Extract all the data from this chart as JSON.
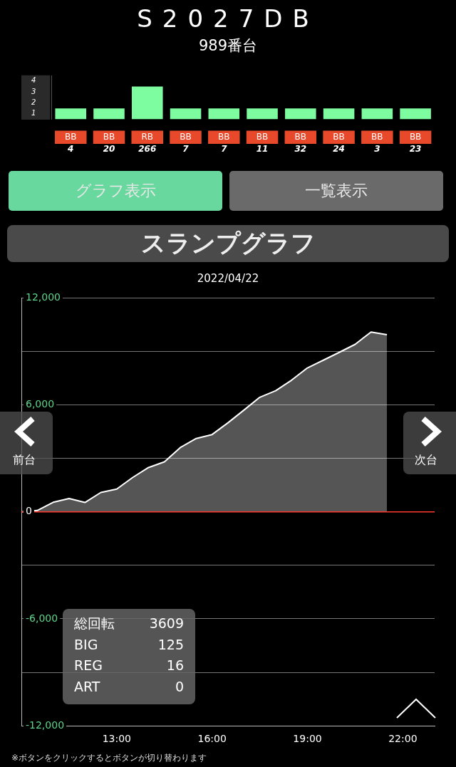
{
  "chart_data": [
    {
      "type": "bar",
      "title": "S2027DB",
      "subtitle": "989番台",
      "categories": [
        "BB",
        "BB",
        "RB",
        "BB",
        "BB",
        "BB",
        "BB",
        "BB",
        "BB",
        "BB"
      ],
      "values": [
        1,
        1,
        3,
        1,
        1,
        1,
        1,
        1,
        1,
        1
      ],
      "color": "#7dfca0",
      "ylim": [
        0,
        4
      ],
      "yticks": [
        {
          "value": 0.5,
          "label": "1"
        },
        {
          "value": 1.5,
          "label": "2"
        },
        {
          "value": 2.5,
          "label": "3"
        },
        {
          "value": 3.5,
          "label": "4"
        }
      ],
      "annotations": [
        "4",
        "20",
        "266",
        "7",
        "7",
        "11",
        "32",
        "24",
        "3",
        "23",
        "グラフ表示",
        "一覧表示"
      ]
    },
    {
      "type": "area",
      "title": "スランプグラフ",
      "subtitle": "2022/04/22",
      "x": [
        10,
        10.5,
        11,
        11.5,
        12,
        12.5,
        13,
        13.5,
        14,
        14.5,
        15,
        15.5,
        16,
        16.5,
        17,
        17.5,
        18,
        18.5,
        19,
        19.5,
        20,
        20.5,
        21,
        21.5
      ],
      "series": [
        {
          "color": "#ffffff",
          "values": [
            0,
            80,
            540,
            750,
            530,
            1090,
            1280,
            1930,
            2490,
            2810,
            3610,
            4120,
            4340,
            5000,
            5710,
            6430,
            6800,
            7390,
            8080,
            8510,
            8950,
            9400,
            10090,
            9940
          ]
        }
      ],
      "xlim": [
        10,
        23
      ],
      "ylim": [
        -12000,
        12000
      ],
      "xticks": [
        {
          "value": 13,
          "label": "13:00"
        },
        {
          "value": 16,
          "label": "16:00"
        },
        {
          "value": 19,
          "label": "19:00"
        },
        {
          "value": 22,
          "label": "22:00"
        }
      ],
      "yticks": [
        {
          "value": 12000,
          "label": "12,000"
        },
        {
          "value": 9000,
          "label": null
        },
        {
          "value": 6000,
          "label": "6,000"
        },
        {
          "value": 3000,
          "label": null
        },
        0,
        {
          "value": -3000,
          "label": null
        },
        {
          "value": -6000,
          "label": "-6,000"
        },
        {
          "value": -9000,
          "label": null
        },
        {
          "value": -12000,
          "label": "-12,000"
        }
      ],
      "grid": "y",
      "ref_lines": [
        {
          "axis": "y",
          "value": 0,
          "color": "#ff3b30"
        }
      ],
      "annotations": [
        "前台",
        "次台",
        "総回転",
        "3609",
        "BIG",
        "125",
        "REG",
        "16",
        "ART",
        "0",
        "※ボタンをクリックするとボタンが切り替わります"
      ]
    }
  ]
}
